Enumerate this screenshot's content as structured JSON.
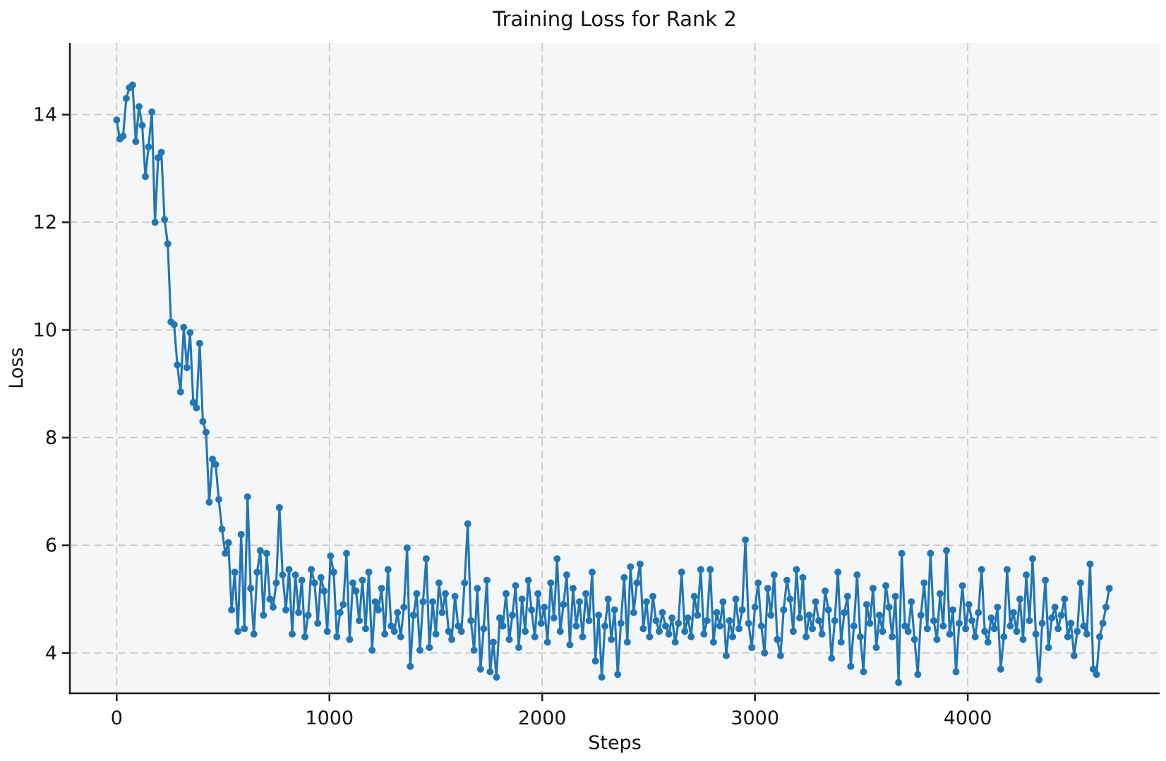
{
  "chart_data": {
    "type": "line",
    "title": "Training Loss for Rank 2",
    "xlabel": "Steps",
    "ylabel": "Loss",
    "legend": "none",
    "grid": "dashed",
    "line_color": "#2176b4",
    "marker": "circle",
    "plot_bg": "#f5f6f8",
    "figure_bg": "#ffffff",
    "grid_color": "#c8c8ca",
    "spine_color": "#1c1c1c",
    "xlim": [
      -220,
      4902
    ],
    "ylim": [
      3.25,
      15.33
    ],
    "xticks": [
      0,
      1000,
      2000,
      3000,
      4000
    ],
    "yticks": [
      4,
      6,
      8,
      10,
      12,
      14
    ],
    "x_start": 0,
    "x_step": 15,
    "values": [
      13.9,
      13.55,
      13.6,
      14.3,
      14.5,
      14.55,
      13.5,
      14.15,
      13.8,
      12.85,
      13.4,
      14.05,
      12.0,
      13.2,
      13.3,
      12.05,
      11.6,
      10.15,
      10.1,
      9.35,
      8.85,
      10.05,
      9.3,
      9.95,
      8.65,
      8.55,
      9.75,
      8.3,
      8.1,
      6.8,
      7.6,
      7.5,
      6.85,
      6.3,
      5.85,
      6.05,
      4.8,
      5.5,
      4.4,
      6.2,
      4.45,
      6.9,
      5.2,
      4.35,
      5.5,
      5.9,
      4.7,
      5.85,
      5.0,
      4.85,
      5.3,
      6.7,
      5.45,
      4.8,
      5.55,
      4.35,
      5.45,
      4.75,
      5.35,
      4.3,
      4.7,
      5.55,
      5.3,
      4.55,
      5.4,
      5.15,
      4.4,
      5.8,
      5.5,
      4.3,
      4.75,
      4.9,
      5.85,
      4.25,
      5.3,
      5.15,
      4.6,
      5.35,
      4.45,
      5.5,
      4.05,
      4.95,
      4.8,
      5.2,
      4.35,
      5.55,
      4.5,
      4.4,
      4.75,
      4.3,
      4.85,
      5.95,
      3.75,
      4.7,
      5.1,
      4.05,
      4.95,
      5.75,
      4.1,
      4.95,
      4.35,
      5.3,
      4.75,
      5.1,
      4.4,
      4.25,
      5.05,
      4.5,
      4.4,
      5.3,
      6.4,
      4.6,
      4.05,
      5.2,
      3.7,
      4.45,
      5.35,
      3.65,
      4.2,
      3.55,
      4.65,
      4.5,
      5.1,
      4.25,
      4.7,
      5.25,
      4.1,
      5.0,
      4.4,
      5.35,
      4.8,
      4.3,
      5.1,
      4.55,
      4.85,
      4.2,
      5.3,
      4.65,
      5.75,
      4.4,
      4.9,
      5.45,
      4.15,
      5.2,
      4.5,
      4.95,
      4.3,
      5.1,
      4.6,
      5.5,
      3.85,
      4.7,
      3.55,
      4.5,
      5.0,
      4.25,
      4.8,
      3.6,
      4.55,
      5.4,
      4.2,
      5.6,
      4.75,
      5.3,
      5.65,
      4.45,
      4.95,
      4.3,
      5.05,
      4.6,
      4.4,
      4.75,
      4.5,
      4.35,
      4.65,
      4.2,
      4.55,
      5.5,
      4.4,
      4.65,
      4.3,
      5.05,
      4.7,
      5.55,
      4.35,
      4.6,
      5.55,
      4.2,
      4.75,
      4.5,
      4.95,
      3.95,
      4.6,
      4.3,
      5.0,
      4.45,
      4.8,
      6.1,
      4.55,
      4.1,
      4.85,
      5.3,
      4.5,
      4.0,
      5.2,
      4.7,
      5.45,
      4.25,
      3.95,
      4.8,
      5.35,
      5.0,
      4.4,
      5.55,
      4.65,
      5.4,
      4.3,
      4.7,
      4.45,
      4.95,
      4.6,
      4.35,
      5.15,
      4.8,
      3.9,
      4.6,
      5.5,
      4.2,
      4.75,
      5.05,
      3.75,
      4.5,
      5.45,
      4.3,
      3.65,
      4.9,
      4.55,
      5.2,
      4.1,
      4.7,
      4.4,
      5.25,
      4.85,
      4.3,
      5.05,
      3.45,
      5.85,
      4.5,
      4.4,
      4.95,
      4.25,
      3.6,
      4.7,
      5.3,
      4.45,
      5.85,
      4.6,
      4.25,
      5.1,
      4.5,
      5.9,
      4.35,
      4.8,
      3.65,
      4.55,
      5.25,
      4.45,
      4.9,
      4.6,
      4.3,
      4.75,
      5.55,
      4.4,
      4.2,
      4.65,
      4.45,
      4.85,
      3.7,
      4.3,
      5.55,
      4.5,
      4.75,
      4.4,
      5.0,
      4.25,
      5.45,
      4.6,
      5.75,
      4.35,
      3.5,
      4.55,
      5.35,
      4.1,
      4.65,
      4.85,
      4.45,
      4.7,
      5.0,
      4.3,
      4.55,
      3.95,
      4.4,
      5.3,
      4.5,
      4.35,
      5.65,
      3.7,
      3.6,
      4.3,
      4.55,
      4.85,
      5.2
    ]
  }
}
